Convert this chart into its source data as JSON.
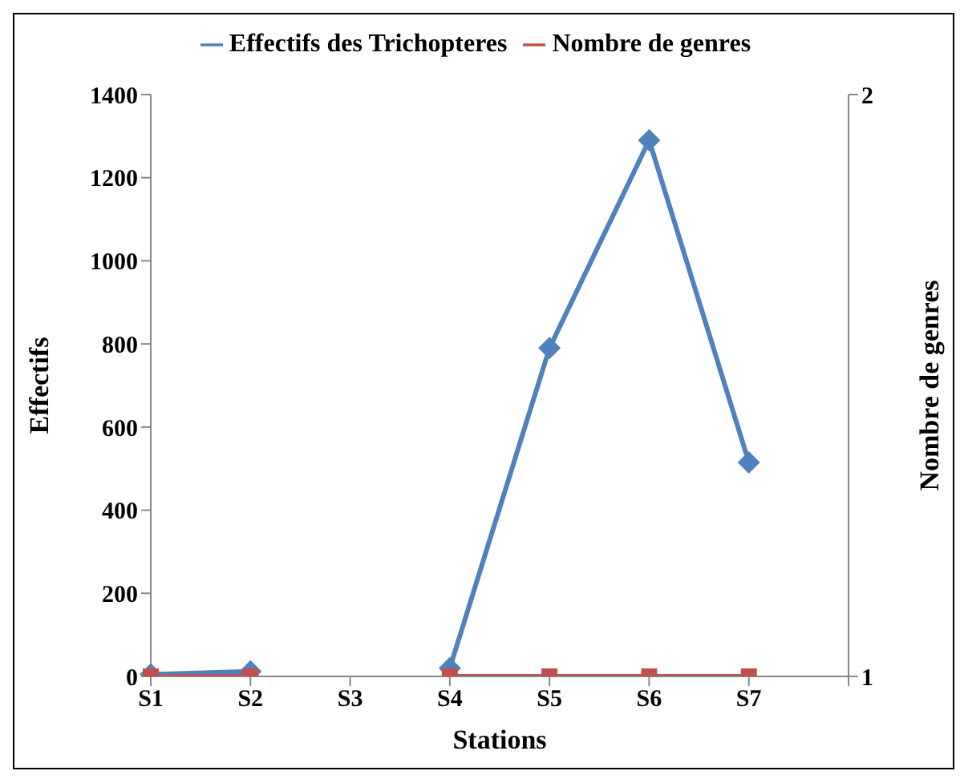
{
  "chart_data": {
    "type": "line",
    "xlabel": "Stations",
    "ylabel": "Effectifs",
    "y2label": "Nombre de genres",
    "categories": [
      "S1",
      "S2",
      "S3",
      "S4",
      "S5",
      "S6",
      "S7",
      null
    ],
    "series": [
      {
        "name": "Effectifs des Trichopteres",
        "color": "#4f81bd",
        "marker": "diamond",
        "values": [
          5,
          12,
          null,
          20,
          790,
          1290,
          515,
          null
        ]
      },
      {
        "name": "Nombre de genres",
        "color": "#c0504d",
        "marker": "square",
        "axis": "y2",
        "values": [
          1,
          1,
          null,
          1,
          1,
          1,
          1,
          null
        ]
      }
    ],
    "ylim": [
      0,
      1400
    ],
    "yticks": [
      0,
      200,
      400,
      600,
      800,
      1000,
      1200,
      1400
    ],
    "y2lim": [
      1,
      2
    ],
    "y2ticks": [
      1,
      2
    ],
    "grid": false,
    "legend": "top"
  }
}
